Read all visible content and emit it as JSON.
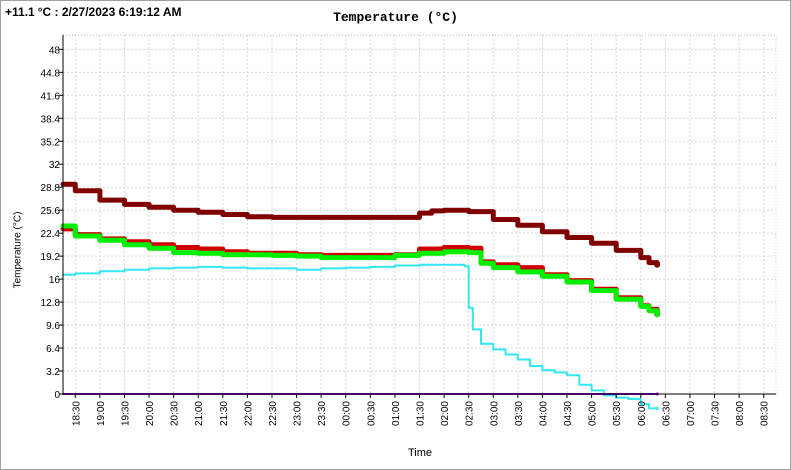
{
  "readout": {
    "value": "+11.1",
    "unit": "°C",
    "separator": ":",
    "timestamp": "2/27/2023 6:19:12 AM"
  },
  "chart_data": {
    "type": "line",
    "title": "Temperature (°C)",
    "xlabel": "Time",
    "ylabel": "Temperature (°C)",
    "ylim": [
      0,
      50
    ],
    "yticks": [
      0,
      3.2,
      6.4,
      9.6,
      12.8,
      16,
      19.2,
      22.4,
      25.6,
      28.8,
      32,
      35.2,
      38.4,
      41.6,
      44.8,
      48
    ],
    "ytick_labels": [
      "0",
      "3.2",
      "6.4",
      "9.6",
      "12.8",
      "16",
      "19.2",
      "22.4",
      "25.6",
      "28.8",
      "32",
      "35.2",
      "38.4",
      "41.6",
      "44.8",
      "48"
    ],
    "xlim": [
      "18:15",
      "08:45"
    ],
    "xticks": [
      "18:30",
      "19:00",
      "19:30",
      "20:00",
      "20:30",
      "21:00",
      "21:30",
      "22:00",
      "22:30",
      "23:00",
      "23:30",
      "00:00",
      "00:30",
      "01:00",
      "01:30",
      "02:00",
      "02:30",
      "03:00",
      "03:30",
      "04:00",
      "04:30",
      "05:00",
      "05:30",
      "06:00",
      "06:30",
      "07:00",
      "07:30",
      "08:00",
      "08:30"
    ],
    "grid": true,
    "series": [
      {
        "color": "#800000",
        "width": 5,
        "x": [
          "18:15",
          "18:30",
          "19:00",
          "19:30",
          "20:00",
          "20:30",
          "21:00",
          "21:30",
          "22:00",
          "22:30",
          "23:00",
          "23:30",
          "00:00",
          "00:30",
          "01:00",
          "01:30",
          "01:45",
          "02:00",
          "02:15",
          "02:30",
          "03:00",
          "03:30",
          "04:00",
          "04:30",
          "05:00",
          "05:30",
          "06:00",
          "06:10",
          "06:20"
        ],
        "y": [
          29.2,
          28.3,
          27.0,
          26.4,
          26.0,
          25.6,
          25.3,
          25.0,
          24.7,
          24.6,
          24.6,
          24.6,
          24.6,
          24.6,
          24.6,
          25.2,
          25.5,
          25.6,
          25.6,
          25.4,
          24.3,
          23.5,
          22.6,
          21.8,
          21.0,
          20.0,
          19.0,
          18.3,
          18.0
        ]
      },
      {
        "color": "#d00000",
        "width": 5,
        "x": [
          "18:15",
          "18:30",
          "19:00",
          "19:30",
          "20:00",
          "20:30",
          "21:00",
          "21:30",
          "22:00",
          "22:30",
          "23:00",
          "23:30",
          "00:00",
          "00:30",
          "01:00",
          "01:30",
          "02:00",
          "02:30",
          "02:45",
          "03:00",
          "03:30",
          "04:00",
          "04:30",
          "05:00",
          "05:30",
          "06:00",
          "06:10",
          "06:20"
        ],
        "y": [
          23.0,
          22.2,
          21.6,
          21.2,
          20.8,
          20.4,
          20.2,
          19.8,
          19.6,
          19.6,
          19.4,
          19.3,
          19.3,
          19.3,
          19.4,
          20.2,
          20.4,
          20.3,
          18.4,
          18.0,
          17.6,
          16.6,
          15.8,
          14.6,
          13.4,
          12.3,
          11.8,
          11.1
        ]
      },
      {
        "color": "#00ee00",
        "width": 5,
        "x": [
          "18:15",
          "18:30",
          "19:00",
          "19:30",
          "20:00",
          "20:30",
          "21:00",
          "21:30",
          "22:00",
          "22:30",
          "23:00",
          "23:30",
          "00:00",
          "00:30",
          "01:00",
          "01:30",
          "02:00",
          "02:30",
          "02:45",
          "03:00",
          "03:30",
          "04:00",
          "04:30",
          "05:00",
          "05:30",
          "06:00",
          "06:10",
          "06:20"
        ],
        "y": [
          23.4,
          22.0,
          21.4,
          20.8,
          20.3,
          19.7,
          19.6,
          19.4,
          19.4,
          19.3,
          19.2,
          19.0,
          19.0,
          19.0,
          19.3,
          19.6,
          19.8,
          19.7,
          18.2,
          17.6,
          17.0,
          16.4,
          15.6,
          14.4,
          13.2,
          12.2,
          11.6,
          11.1
        ]
      },
      {
        "color": "#30e8f0",
        "width": 2,
        "x": [
          "18:15",
          "18:30",
          "19:00",
          "19:30",
          "20:00",
          "20:30",
          "21:00",
          "21:30",
          "22:00",
          "22:30",
          "23:00",
          "23:30",
          "00:00",
          "00:30",
          "01:00",
          "01:30",
          "02:00",
          "02:25",
          "02:30",
          "02:35",
          "02:45",
          "03:00",
          "03:15",
          "03:30",
          "03:45",
          "04:00",
          "04:15",
          "04:30",
          "04:45",
          "05:00",
          "05:15",
          "05:30",
          "05:45",
          "06:00",
          "06:10",
          "06:20"
        ],
        "y": [
          16.6,
          16.8,
          17.1,
          17.3,
          17.5,
          17.6,
          17.7,
          17.6,
          17.5,
          17.5,
          17.3,
          17.5,
          17.6,
          17.7,
          17.9,
          18.0,
          18.0,
          17.8,
          12.0,
          9.0,
          7.0,
          6.2,
          5.5,
          4.8,
          3.9,
          3.3,
          3.0,
          2.6,
          1.3,
          0.5,
          -0.2,
          -0.5,
          -0.7,
          -1.4,
          -2.0,
          -2.0
        ]
      },
      {
        "color": "#8800cc",
        "width": 2,
        "x": [
          "18:15",
          "06:20"
        ],
        "y": [
          0,
          0
        ]
      }
    ]
  }
}
